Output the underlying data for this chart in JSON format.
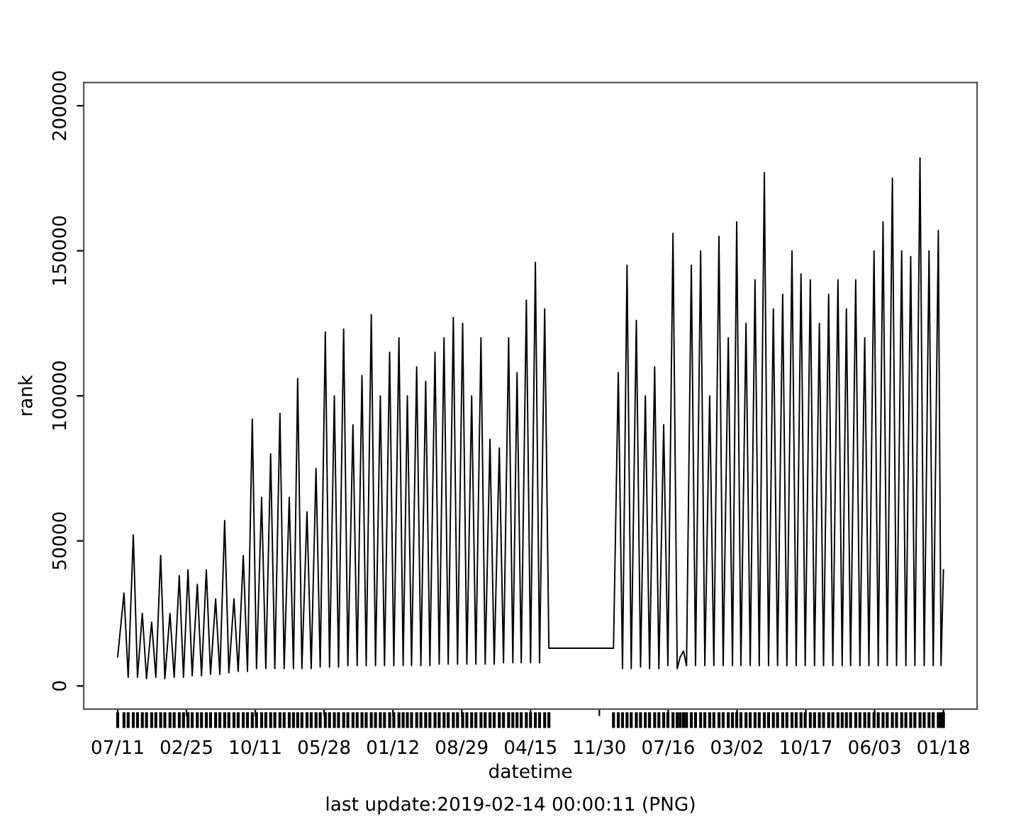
{
  "chart_data": {
    "type": "line",
    "xlabel": "datetime",
    "ylabel": "rank",
    "annotations": [
      "last update:2019-02-14 00:00:11 (PNG)"
    ],
    "xlim": [
      "2011-03-20",
      "2019-05-10"
    ],
    "xticks": [
      {
        "value": "2011-07-11",
        "label": "07/11"
      },
      {
        "value": "2012-02-25",
        "label": "02/25"
      },
      {
        "value": "2012-10-11",
        "label": "10/11"
      },
      {
        "value": "2013-05-28",
        "label": "05/28"
      },
      {
        "value": "2014-01-12",
        "label": "01/12"
      },
      {
        "value": "2014-08-29",
        "label": "08/29"
      },
      {
        "value": "2015-04-15",
        "label": "04/15"
      },
      {
        "value": "2015-11-30",
        "label": "11/30"
      },
      {
        "value": "2016-07-16",
        "label": "07/16"
      },
      {
        "value": "2017-03-02",
        "label": "03/02"
      },
      {
        "value": "2017-10-17",
        "label": "10/17"
      },
      {
        "value": "2018-06-03",
        "label": "06/03"
      },
      {
        "value": "2019-01-18",
        "label": "01/18"
      }
    ],
    "ylim": [
      -8000,
      208000
    ],
    "yticks": [
      0,
      50000,
      100000,
      150000,
      200000
    ],
    "grid": false,
    "legend": false,
    "marker": "none",
    "line_style": "solid",
    "series": [
      {
        "color": "#000000",
        "x": [
          "2011-07-11",
          "2011-08-01",
          "2011-08-15",
          "2011-09-01",
          "2011-09-15",
          "2011-10-01",
          "2011-10-15",
          "2011-11-01",
          "2011-11-15",
          "2011-12-01",
          "2011-12-15",
          "2012-01-01",
          "2012-01-15",
          "2012-02-01",
          "2012-02-15",
          "2012-03-01",
          "2012-03-15",
          "2012-04-01",
          "2012-04-15",
          "2012-05-01",
          "2012-05-15",
          "2012-06-01",
          "2012-06-15",
          "2012-07-01",
          "2012-07-15",
          "2012-08-01",
          "2012-08-15",
          "2012-09-01",
          "2012-09-15",
          "2012-10-01",
          "2012-10-15",
          "2012-11-01",
          "2012-11-15",
          "2012-12-01",
          "2012-12-15",
          "2013-01-01",
          "2013-01-15",
          "2013-02-01",
          "2013-02-15",
          "2013-03-01",
          "2013-03-15",
          "2013-04-01",
          "2013-04-15",
          "2013-05-01",
          "2013-05-15",
          "2013-06-01",
          "2013-06-15",
          "2013-07-01",
          "2013-07-15",
          "2013-08-01",
          "2013-08-15",
          "2013-09-01",
          "2013-09-15",
          "2013-10-01",
          "2013-10-15",
          "2013-11-01",
          "2013-11-15",
          "2013-12-01",
          "2013-12-15",
          "2014-01-01",
          "2014-01-15",
          "2014-02-01",
          "2014-02-15",
          "2014-03-01",
          "2014-03-15",
          "2014-04-01",
          "2014-04-15",
          "2014-05-01",
          "2014-05-15",
          "2014-06-01",
          "2014-06-15",
          "2014-07-01",
          "2014-07-15",
          "2014-08-01",
          "2014-08-15",
          "2014-09-01",
          "2014-09-15",
          "2014-10-01",
          "2014-10-15",
          "2014-11-01",
          "2014-11-15",
          "2014-12-01",
          "2014-12-15",
          "2015-01-01",
          "2015-01-15",
          "2015-02-01",
          "2015-02-15",
          "2015-03-01",
          "2015-03-15",
          "2015-04-01",
          "2015-04-15",
          "2015-05-01",
          "2015-05-15",
          "2015-06-01",
          "2015-06-15",
          "2016-01-16",
          "2016-02-01",
          "2016-02-15",
          "2016-03-01",
          "2016-03-15",
          "2016-04-01",
          "2016-04-15",
          "2016-05-01",
          "2016-05-15",
          "2016-06-01",
          "2016-06-15",
          "2016-07-01",
          "2016-07-15",
          "2016-08-01",
          "2016-08-15",
          "2016-08-25",
          "2016-09-05",
          "2016-09-15",
          "2016-10-01",
          "2016-10-15",
          "2016-11-01",
          "2016-11-15",
          "2016-12-01",
          "2016-12-15",
          "2017-01-01",
          "2017-01-15",
          "2017-02-01",
          "2017-02-15",
          "2017-03-01",
          "2017-03-15",
          "2017-04-01",
          "2017-04-15",
          "2017-05-01",
          "2017-05-15",
          "2017-06-01",
          "2017-06-15",
          "2017-07-01",
          "2017-07-15",
          "2017-08-01",
          "2017-08-15",
          "2017-09-01",
          "2017-09-15",
          "2017-10-01",
          "2017-10-15",
          "2017-11-01",
          "2017-11-15",
          "2017-12-01",
          "2017-12-15",
          "2018-01-01",
          "2018-01-15",
          "2018-02-01",
          "2018-02-15",
          "2018-03-01",
          "2018-03-15",
          "2018-04-01",
          "2018-04-15",
          "2018-05-01",
          "2018-05-15",
          "2018-06-01",
          "2018-06-15",
          "2018-07-01",
          "2018-07-15",
          "2018-08-01",
          "2018-08-15",
          "2018-09-01",
          "2018-09-15",
          "2018-10-01",
          "2018-10-15",
          "2018-11-01",
          "2018-11-15",
          "2018-12-01",
          "2018-12-15",
          "2019-01-01",
          "2019-01-10",
          "2019-01-18"
        ],
        "values": [
          10000,
          32000,
          3000,
          52000,
          3000,
          25000,
          2500,
          22000,
          3000,
          45000,
          2500,
          25000,
          3000,
          38000,
          3000,
          40000,
          3500,
          35000,
          3500,
          40000,
          4000,
          30000,
          4000,
          57000,
          4500,
          30000,
          5000,
          45000,
          5000,
          92000,
          6000,
          65000,
          6000,
          80000,
          6000,
          94000,
          6000,
          65000,
          6000,
          106000,
          6000,
          60000,
          6000,
          75000,
          6500,
          122000,
          6500,
          100000,
          6500,
          123000,
          7000,
          90000,
          7000,
          107000,
          7000,
          128000,
          7000,
          100000,
          7000,
          115000,
          7000,
          120000,
          7000,
          100000,
          7000,
          110000,
          7000,
          105000,
          7000,
          115000,
          7500,
          120000,
          7500,
          127000,
          7500,
          125000,
          7500,
          100000,
          7500,
          120000,
          7500,
          85000,
          7500,
          82000,
          8000,
          120000,
          8000,
          108000,
          8000,
          133000,
          8000,
          146000,
          8000,
          130000,
          13000,
          13000,
          108000,
          6000,
          145000,
          6000,
          126000,
          6500,
          100000,
          6000,
          110000,
          6000,
          90000,
          7000,
          156000,
          6000,
          10000,
          12000,
          7000,
          145000,
          7000,
          150000,
          7000,
          100000,
          7000,
          155000,
          7000,
          120000,
          7000,
          160000,
          7000,
          125000,
          7000,
          140000,
          7000,
          177000,
          7000,
          130000,
          7000,
          135000,
          7000,
          150000,
          7000,
          142000,
          7000,
          140000,
          7000,
          125000,
          7000,
          135000,
          7000,
          140000,
          7000,
          130000,
          7000,
          140000,
          7000,
          120000,
          7000,
          150000,
          7000,
          160000,
          7000,
          175000,
          7000,
          150000,
          7000,
          148000,
          7000,
          182000,
          7000,
          150000,
          7000,
          157000,
          7000,
          40000
        ]
      }
    ]
  }
}
